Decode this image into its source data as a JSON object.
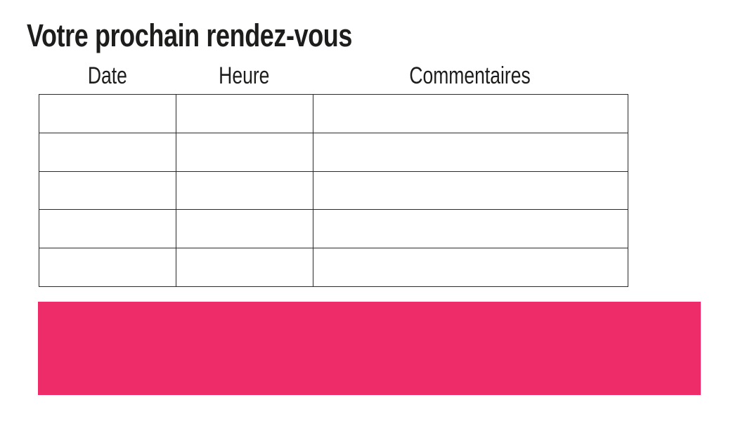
{
  "page": {
    "title": "Votre prochain rendez-vous",
    "background_color": "#ffffff",
    "text_color": "#1d1d1b"
  },
  "table": {
    "headers": [
      "Date",
      "Heure",
      "Commentaires"
    ],
    "border_color": "#2a2a2a",
    "rows": [
      {
        "cells": [
          "",
          "",
          ""
        ]
      },
      {
        "cells": [
          "",
          "",
          ""
        ]
      },
      {
        "cells": [
          "",
          "",
          ""
        ]
      },
      {
        "cells": [
          "",
          "",
          ""
        ]
      },
      {
        "cells": [
          "",
          "",
          ""
        ]
      }
    ]
  },
  "footer_band": {
    "color": "#ee2c69"
  }
}
